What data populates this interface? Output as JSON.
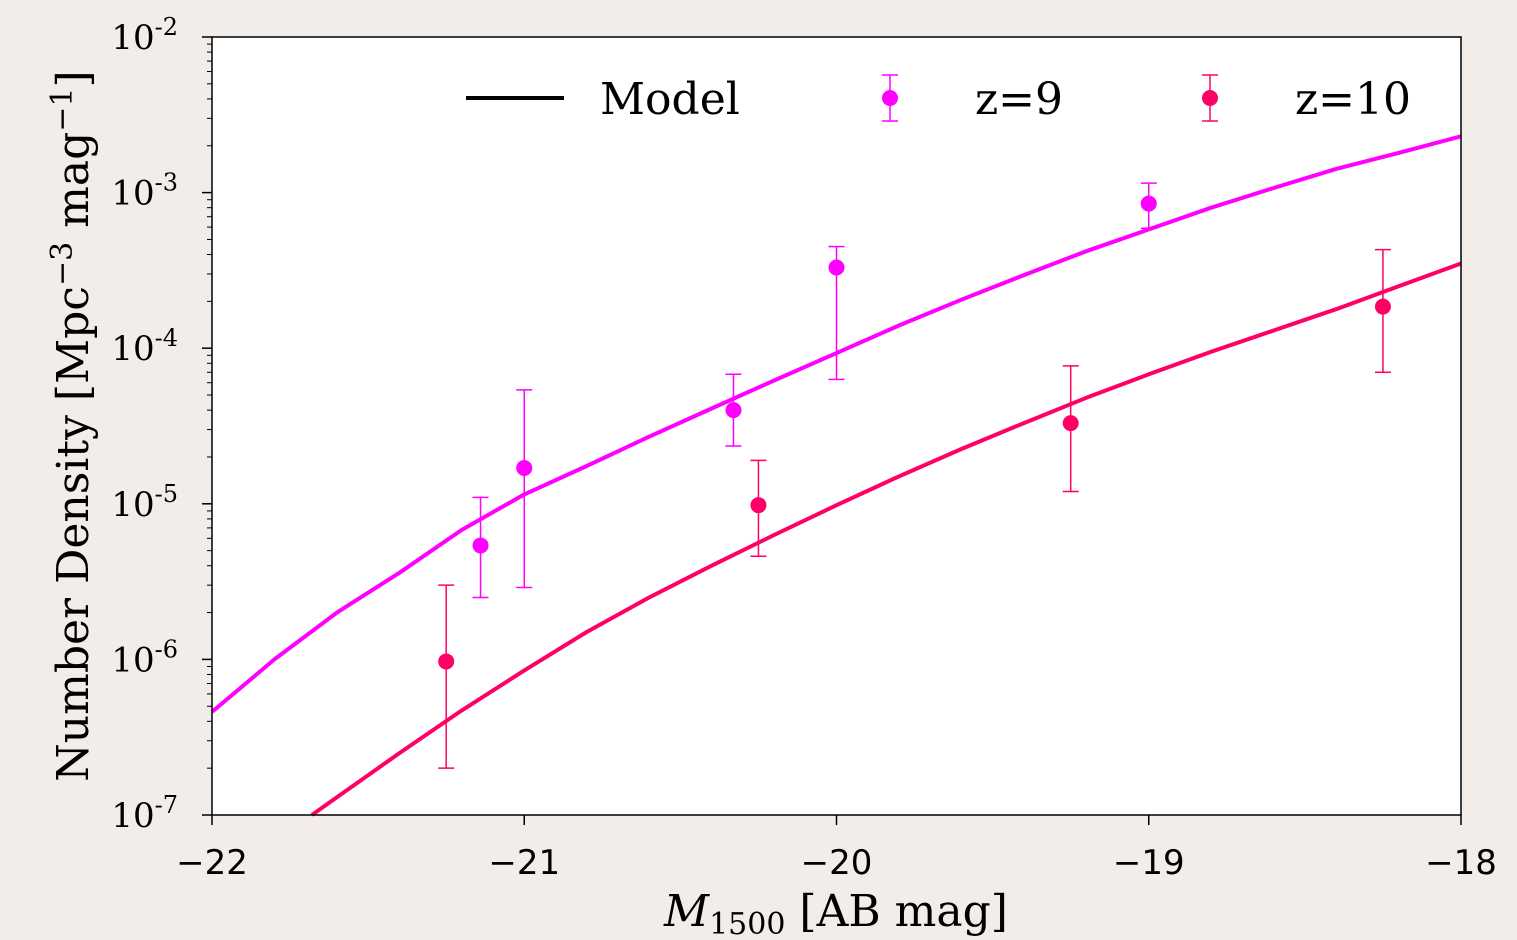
{
  "chart_data": {
    "type": "scatter",
    "xlabel": {
      "symbol": "M",
      "subscript": "1500",
      "rest": " [AB mag]"
    },
    "ylabel": {
      "base": "Number Density [Mpc",
      "exp1": "−3",
      "mid": " mag",
      "exp2": "−1",
      "end": "]"
    },
    "x_range": [
      -22,
      -18
    ],
    "y_range": [
      1e-07,
      0.01
    ],
    "y_scale": "log",
    "x_ticks": [
      -22,
      -21,
      -20,
      -19,
      -18
    ],
    "x_tick_labels": [
      "−22",
      "−21",
      "−20",
      "−19",
      "−18"
    ],
    "y_ticks": [
      {
        "value": 1e-07,
        "base": "10",
        "exp": "-7"
      },
      {
        "value": 1e-06,
        "base": "10",
        "exp": "-6"
      },
      {
        "value": 1e-05,
        "base": "10",
        "exp": "-5"
      },
      {
        "value": 0.0001,
        "base": "10",
        "exp": "-4"
      },
      {
        "value": 0.001,
        "base": "10",
        "exp": "-3"
      },
      {
        "value": 0.01,
        "base": "10",
        "exp": "-2"
      }
    ],
    "legend_position": "top",
    "legend": [
      {
        "label": "Model",
        "kind": "line",
        "color": "#000000"
      },
      {
        "label": "z=9",
        "kind": "errorbar",
        "color": "#ff00ff"
      },
      {
        "label": "z=10",
        "kind": "errorbar",
        "color": "#ff0066"
      }
    ],
    "model_series": [
      {
        "color": "#ff00ff",
        "x": [
          -22.0,
          -21.8,
          -21.6,
          -21.4,
          -21.2,
          -21.0,
          -20.8,
          -20.6,
          -20.4,
          -20.2,
          -20.0,
          -19.8,
          -19.6,
          -19.4,
          -19.2,
          -19.0,
          -18.8,
          -18.6,
          -18.4,
          -18.2,
          -18.0
        ],
        "y": [
          4.6e-07,
          1e-06,
          2e-06,
          3.6e-06,
          6.8e-06,
          1.15e-05,
          1.75e-05,
          2.7e-05,
          4.1e-05,
          6.2e-05,
          9.3e-05,
          0.00014,
          0.000205,
          0.000295,
          0.00042,
          0.00058,
          0.0008,
          0.00107,
          0.00142,
          0.0018,
          0.0023
        ]
      },
      {
        "color": "#ff0066",
        "x": [
          -21.68,
          -21.6,
          -21.4,
          -21.2,
          -21.0,
          -20.8,
          -20.6,
          -20.4,
          -20.2,
          -20.0,
          -19.8,
          -19.6,
          -19.4,
          -19.2,
          -19.0,
          -18.8,
          -18.6,
          -18.4,
          -18.2,
          -18.0
        ],
        "y": [
          1e-07,
          1.3e-07,
          2.5e-07,
          4.7e-07,
          8.5e-07,
          1.5e-06,
          2.5e-06,
          4e-06,
          6.3e-06,
          9.8e-06,
          1.5e-05,
          2.25e-05,
          3.3e-05,
          4.8e-05,
          6.8e-05,
          9.5e-05,
          0.00013,
          0.000178,
          0.00025,
          0.00035
        ]
      }
    ],
    "data_series": [
      {
        "name": "z=9",
        "color": "#ff00ff",
        "points": [
          {
            "x": -21.14,
            "y": 5.4e-06,
            "ylo": 2.5e-06,
            "yhi": 1.1e-05
          },
          {
            "x": -21.0,
            "y": 1.7e-05,
            "ylo": 2.9e-06,
            "yhi": 5.4e-05
          },
          {
            "x": -20.33,
            "y": 4e-05,
            "ylo": 2.35e-05,
            "yhi": 6.8e-05
          },
          {
            "x": -20.0,
            "y": 0.00033,
            "ylo": 6.3e-05,
            "yhi": 0.00045
          },
          {
            "x": -19.0,
            "y": 0.00085,
            "ylo": 0.00059,
            "yhi": 0.00115
          }
        ]
      },
      {
        "name": "z=10",
        "color": "#ff0066",
        "points": [
          {
            "x": -21.25,
            "y": 9.7e-07,
            "ylo": 2e-07,
            "yhi": 3e-06
          },
          {
            "x": -20.25,
            "y": 9.8e-06,
            "ylo": 4.6e-06,
            "yhi": 1.9e-05
          },
          {
            "x": -19.25,
            "y": 3.3e-05,
            "ylo": 1.2e-05,
            "yhi": 7.7e-05
          },
          {
            "x": -18.25,
            "y": 0.000185,
            "ylo": 7e-05,
            "yhi": 0.00043
          }
        ]
      }
    ]
  }
}
